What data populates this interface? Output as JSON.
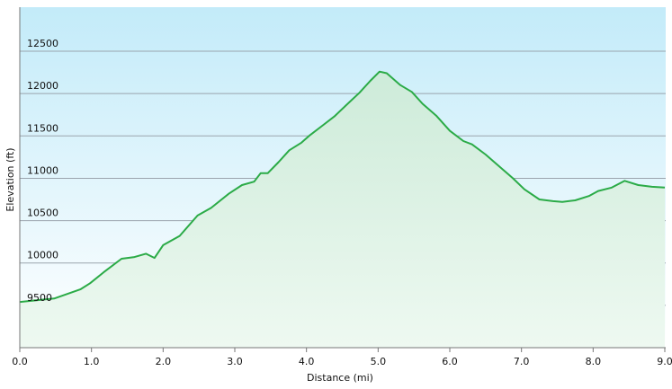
{
  "chart_data": {
    "type": "area",
    "x_label": "Distance  (mi)",
    "y_label": "Elevation (ft)",
    "x": [
      0.0,
      0.48,
      0.85,
      0.98,
      1.17,
      1.42,
      1.6,
      1.76,
      1.88,
      2.0,
      2.23,
      2.48,
      2.67,
      2.92,
      3.1,
      3.27,
      3.36,
      3.46,
      3.61,
      3.76,
      3.93,
      4.05,
      4.22,
      4.39,
      4.55,
      4.74,
      4.89,
      5.02,
      5.12,
      5.31,
      5.47,
      5.62,
      5.81,
      6.0,
      6.19,
      6.31,
      6.5,
      6.69,
      6.88,
      7.04,
      7.25,
      7.44,
      7.57,
      7.75,
      7.94,
      8.07,
      8.26,
      8.44,
      8.63,
      8.82,
      9.0
    ],
    "values": [
      9540,
      9580,
      9690,
      9760,
      9890,
      10050,
      10070,
      10110,
      10060,
      10210,
      10320,
      10560,
      10650,
      10820,
      10920,
      10960,
      11060,
      11060,
      11190,
      11330,
      11420,
      11510,
      11620,
      11730,
      11860,
      12010,
      12150,
      12260,
      12240,
      12100,
      12020,
      11880,
      11740,
      11560,
      11440,
      11400,
      11280,
      11140,
      11000,
      10870,
      10750,
      10730,
      10720,
      10740,
      10790,
      10850,
      10890,
      10970,
      10920,
      10900,
      10890
    ],
    "color": "#2bab47",
    "xlim": [
      0,
      9
    ],
    "ylim": [
      9000,
      13020
    ],
    "xticks": [
      {
        "value": 0,
        "label": "0.0"
      },
      {
        "value": 1,
        "label": "1.0"
      },
      {
        "value": 2,
        "label": "2.0"
      },
      {
        "value": 3,
        "label": "3.0"
      },
      {
        "value": 4,
        "label": "4.0"
      },
      {
        "value": 5,
        "label": "5.0"
      },
      {
        "value": 6,
        "label": "6.0"
      },
      {
        "value": 7,
        "label": "7.0"
      },
      {
        "value": 8,
        "label": "8.0"
      },
      {
        "value": 9,
        "label": "9.0"
      }
    ],
    "yticks": [
      9500,
      10000,
      10500,
      11000,
      11500,
      12000,
      12500
    ],
    "grid": true
  }
}
